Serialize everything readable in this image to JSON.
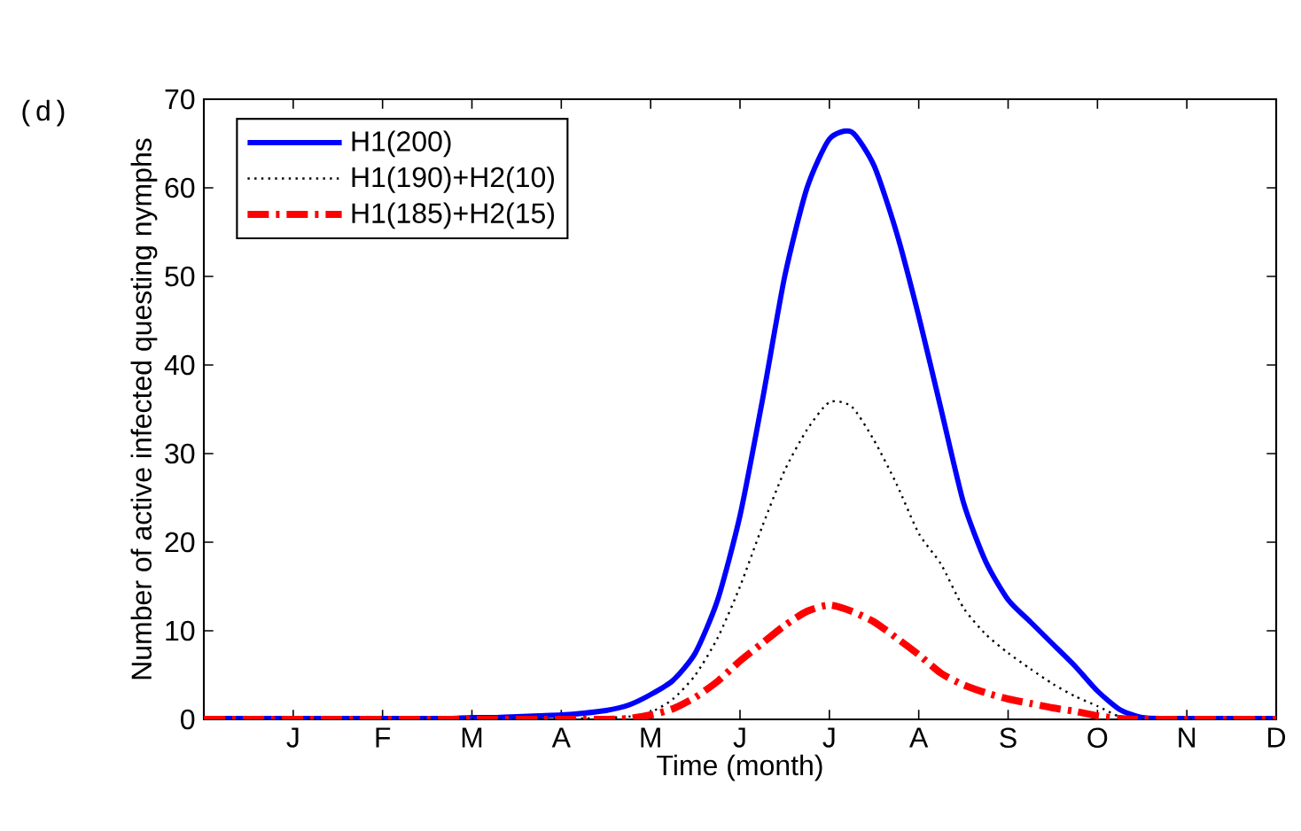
{
  "chart_data": {
    "type": "line",
    "xlabel": "Time (month)",
    "ylabel": "Number of active infected questing nymphs",
    "annotations": [
      "(d)"
    ],
    "categories": [
      null,
      null,
      null,
      null,
      "J",
      null,
      null,
      null,
      "F",
      null,
      null,
      null,
      "M",
      null,
      null,
      null,
      "A",
      null,
      null,
      null,
      "M",
      null,
      null,
      null,
      "J",
      null,
      null,
      null,
      "J",
      null,
      null,
      null,
      "A",
      null,
      null,
      null,
      "S",
      null,
      null,
      null,
      "O",
      null,
      null,
      null,
      "N",
      null,
      null,
      null,
      "D"
    ],
    "ylim": [
      0,
      70
    ],
    "yticks": [
      0,
      10,
      20,
      30,
      40,
      50,
      60,
      70
    ],
    "legend": "top left",
    "grid": false,
    "series": [
      {
        "name": "H1(200)",
        "color": "#0000ff",
        "line_style": "solid",
        "values": [
          0.1,
          0.1,
          0.1,
          0.1,
          0.1,
          0.1,
          0.1,
          0.1,
          0.1,
          0.1,
          0.1,
          0.1,
          0.2,
          0.2,
          0.3,
          0.4,
          0.5,
          0.7,
          1.0,
          1.6,
          2.8,
          4.4,
          7.5,
          13.5,
          23,
          36,
          50,
          60,
          65.5,
          66.3,
          62.5,
          55,
          45.5,
          35,
          24.5,
          17.8,
          13.5,
          11,
          8.5,
          6,
          3.2,
          1.1,
          0.2,
          0.1,
          0.1,
          0.1,
          0.1,
          0.1,
          0.1
        ]
      },
      {
        "name": "H1(190)+H2(10)",
        "color": "#000000",
        "line_style": "dotted",
        "values": [
          0,
          0,
          0,
          0,
          0,
          0,
          0,
          0,
          0,
          0,
          0,
          0,
          0,
          0,
          0,
          0,
          0.1,
          0.1,
          0.2,
          0.3,
          0.8,
          2.3,
          5,
          9.2,
          15,
          21.8,
          28.1,
          32.7,
          35.8,
          35.3,
          31.5,
          26.6,
          21,
          17.5,
          12.6,
          9.6,
          7.5,
          5.7,
          4,
          2.6,
          1.5,
          0.3,
          0,
          0,
          0,
          0,
          0,
          0,
          0
        ]
      },
      {
        "name": "H1(185)+H2(15)",
        "color": "#ff0000",
        "line_style": "dashdot",
        "values": [
          0,
          0,
          0,
          0,
          0,
          0,
          0,
          0,
          0,
          0,
          0,
          0,
          0,
          0,
          0,
          0,
          0,
          0,
          0,
          0.1,
          0.5,
          1.2,
          2.5,
          4.3,
          6.6,
          8.6,
          10.6,
          12.2,
          12.9,
          12.2,
          11,
          9.2,
          7.3,
          5.2,
          3.9,
          3,
          2.3,
          1.8,
          1.3,
          0.9,
          0.4,
          0.1,
          0,
          0,
          0,
          0,
          0,
          0,
          0
        ]
      }
    ]
  }
}
